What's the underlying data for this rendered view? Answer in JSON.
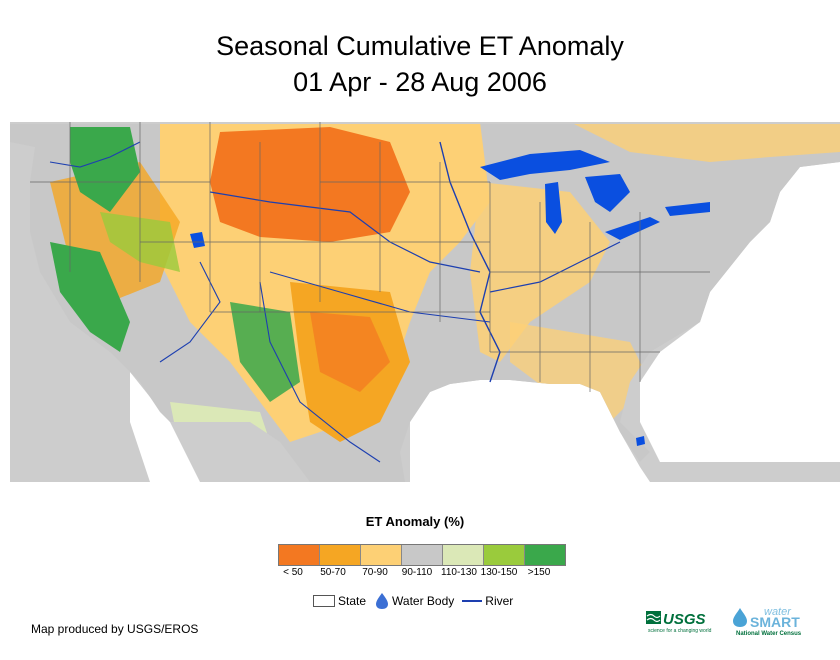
{
  "title": {
    "line1": "Seasonal Cumulative ET Anomaly",
    "line2": "01 Apr - 28 Aug 2006"
  },
  "legend": {
    "title": "ET Anomaly (%)",
    "classes": [
      {
        "label": "< 50",
        "color": "#f37821"
      },
      {
        "label": "50-70",
        "color": "#f5a623"
      },
      {
        "label": "70-90",
        "color": "#fdd075"
      },
      {
        "label": "90-110",
        "color": "#c8c8c8"
      },
      {
        "label": "110-130",
        "color": "#dbe8b7"
      },
      {
        "label": "130-150",
        "color": "#9acb3c"
      },
      {
        "label": ">150",
        "color": "#3aa84b"
      }
    ]
  },
  "overlay_legend": {
    "state": "State",
    "water": "Water Body",
    "river": "River"
  },
  "credit": "Map produced by USGS/EROS",
  "logos": {
    "usgs": "USGS",
    "usgs_tagline": "science for a changing world",
    "water": "water",
    "smart": "SMART",
    "census": "National Water Census"
  },
  "colors": {
    "water": "#0a4fe0",
    "river": "#1d3fb0",
    "state_border": "#666666"
  }
}
